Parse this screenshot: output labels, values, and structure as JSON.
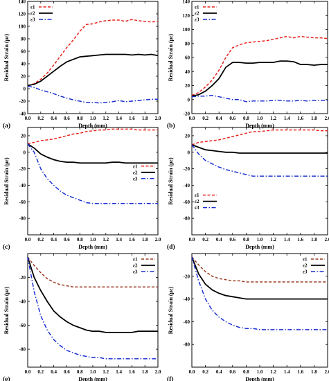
{
  "chart_data": [
    {
      "type": "line",
      "panel_label": "(a)",
      "xlabel": "Depth (mm)",
      "ylabel": "Residual Strain (με)",
      "xlim": [
        0,
        2
      ],
      "ylim": [
        -40,
        140
      ],
      "xticks": [
        "0.0",
        "0.2",
        "0.4",
        "0.6",
        "0.8",
        "1.0",
        "1.2",
        "1.4",
        "1.6",
        "1.8",
        "2.0"
      ],
      "yticks": [
        "-40",
        "-20",
        "0",
        "20",
        "40",
        "60",
        "80",
        "100",
        "120",
        "140"
      ],
      "legend_position": "top-left",
      "series": [
        {
          "name": "ε1",
          "color": "#e8231d",
          "dash": "dashed",
          "x": [
            0,
            0.1,
            0.2,
            0.3,
            0.4,
            0.5,
            0.6,
            0.7,
            0.8,
            0.9,
            1.0,
            1.1,
            1.2,
            1.3,
            1.4,
            1.5,
            1.6,
            1.7,
            1.8,
            1.9,
            2.0
          ],
          "y": [
            5,
            8,
            15,
            25,
            38,
            52,
            66,
            78,
            92,
            103,
            104,
            107,
            109,
            110,
            110,
            108,
            111,
            109,
            108,
            107,
            108
          ]
        },
        {
          "name": "ε2",
          "color": "#000000",
          "dash": "solid",
          "x": [
            0,
            0.1,
            0.2,
            0.3,
            0.4,
            0.5,
            0.6,
            0.7,
            0.8,
            0.9,
            1.0,
            1.1,
            1.2,
            1.3,
            1.4,
            1.5,
            1.6,
            1.7,
            1.8,
            1.9,
            2.0
          ],
          "y": [
            5,
            7,
            12,
            20,
            28,
            36,
            43,
            47,
            51,
            52,
            53,
            54,
            55,
            55,
            55,
            55,
            54,
            55,
            54,
            55,
            53
          ]
        },
        {
          "name": "ε3",
          "color": "#1a2fd4",
          "dash": "dashdot",
          "x": [
            0,
            0.1,
            0.2,
            0.3,
            0.4,
            0.5,
            0.6,
            0.7,
            0.8,
            0.9,
            1.0,
            1.1,
            1.2,
            1.3,
            1.4,
            1.5,
            1.6,
            1.7,
            1.8,
            1.9,
            2.0
          ],
          "y": [
            4,
            2,
            -2,
            -5,
            -8,
            -12,
            -15,
            -18,
            -20,
            -22,
            -22,
            -23,
            -22,
            -21,
            -19,
            -21,
            -20,
            -19,
            -18,
            -17,
            -17
          ]
        }
      ]
    },
    {
      "type": "line",
      "panel_label": "(b)",
      "xlabel": "Depth (mm)",
      "ylabel": "Residual Strain (με)",
      "xlim": [
        0,
        2
      ],
      "ylim": [
        -20,
        140
      ],
      "xticks": [
        "0.0",
        "0.2",
        "0.4",
        "0.6",
        "0.8",
        "1.0",
        "1.2",
        "1.4",
        "1.6",
        "1.8",
        "2.0"
      ],
      "yticks": [
        "-20",
        "0",
        "20",
        "40",
        "60",
        "80",
        "100",
        "120",
        "140"
      ],
      "legend_position": "top-left",
      "series": [
        {
          "name": "ε1",
          "color": "#e8231d",
          "dash": "dashed",
          "x": [
            0,
            0.1,
            0.2,
            0.3,
            0.4,
            0.5,
            0.6,
            0.7,
            0.8,
            0.9,
            1.0,
            1.1,
            1.2,
            1.3,
            1.4,
            1.5,
            1.6,
            1.7,
            1.8,
            1.9,
            2.0
          ],
          "y": [
            6,
            10,
            18,
            28,
            42,
            60,
            74,
            78,
            81,
            82,
            83,
            84,
            86,
            88,
            90,
            88,
            90,
            89,
            88,
            88,
            87
          ]
        },
        {
          "name": "ε2",
          "color": "#000000",
          "dash": "solid",
          "x": [
            0,
            0.1,
            0.2,
            0.3,
            0.4,
            0.5,
            0.6,
            0.7,
            0.8,
            0.9,
            1.0,
            1.1,
            1.2,
            1.3,
            1.4,
            1.5,
            1.6,
            1.7,
            1.8,
            1.9,
            2.0
          ],
          "y": [
            5,
            7,
            12,
            20,
            30,
            46,
            53,
            53,
            52,
            52,
            53,
            53,
            53,
            55,
            55,
            54,
            50,
            50,
            49,
            50,
            50
          ]
        },
        {
          "name": "ε3",
          "color": "#1a2fd4",
          "dash": "dashdot",
          "x": [
            0,
            0.1,
            0.2,
            0.3,
            0.4,
            0.5,
            0.6,
            0.7,
            0.8,
            0.9,
            1.0,
            1.1,
            1.2,
            1.3,
            1.4,
            1.5,
            1.6,
            1.7,
            1.8,
            1.9,
            2.0
          ],
          "y": [
            4,
            5,
            5,
            6,
            4,
            2,
            0,
            0,
            -3,
            -2,
            -2,
            -2,
            -1,
            -1,
            -2,
            -2,
            -1,
            -2,
            -1,
            -1,
            -1
          ]
        }
      ]
    },
    {
      "type": "line",
      "panel_label": "(c)",
      "xlabel": "Depth (mm)",
      "ylabel": "Residual Strain (με)",
      "xlim": [
        0,
        2
      ],
      "ylim": [
        -100,
        30
      ],
      "xticks": [
        "0.0",
        "0.2",
        "0.4",
        "0.6",
        "0.8",
        "1.0",
        "1.2",
        "1.4",
        "1.6",
        "1.8",
        "2.0"
      ],
      "yticks": [
        "-80",
        "-60",
        "-40",
        "-20",
        "0",
        "20"
      ],
      "legend_position": "center-right",
      "series": [
        {
          "name": "ε1",
          "color": "#e8231d",
          "dash": "dashed",
          "x": [
            0,
            0.1,
            0.2,
            0.3,
            0.4,
            0.5,
            0.6,
            0.7,
            0.8,
            0.9,
            1.0,
            1.1,
            1.2,
            1.3,
            1.4,
            1.5,
            1.6,
            1.7,
            1.8,
            1.9,
            2.0
          ],
          "y": [
            10,
            12,
            14,
            15,
            16,
            18,
            20,
            22,
            23,
            25,
            26,
            27,
            27,
            28,
            28,
            28,
            28,
            27,
            27,
            27,
            27
          ]
        },
        {
          "name": "ε2",
          "color": "#000000",
          "dash": "solid",
          "x": [
            0,
            0.1,
            0.2,
            0.3,
            0.4,
            0.5,
            0.6,
            0.7,
            0.8,
            0.9,
            1.0,
            1.1,
            1.2,
            1.3,
            1.4,
            1.5,
            1.6,
            1.7,
            1.8,
            1.9,
            2.0
          ],
          "y": [
            10,
            5,
            -2,
            -6,
            -9,
            -11,
            -12,
            -12,
            -13,
            -13,
            -13,
            -13,
            -13,
            -12,
            -12,
            -13,
            -13,
            -13,
            -13,
            -13,
            -13
          ]
        },
        {
          "name": "ε3",
          "color": "#1a2fd4",
          "dash": "dashdot",
          "x": [
            0,
            0.1,
            0.2,
            0.3,
            0.4,
            0.5,
            0.6,
            0.7,
            0.8,
            0.9,
            1.0,
            1.1,
            1.2,
            1.3,
            1.4,
            1.5,
            1.6,
            1.7,
            1.8,
            1.9,
            2.0
          ],
          "y": [
            10,
            0,
            -20,
            -32,
            -40,
            -47,
            -52,
            -55,
            -58,
            -61,
            -62,
            -62,
            -62,
            -62,
            -62,
            -62,
            -62,
            -62,
            -62,
            -62,
            -62
          ]
        }
      ]
    },
    {
      "type": "line",
      "panel_label": "(d)",
      "xlabel": "Depth (mm)",
      "ylabel": "Residual Strain (με)",
      "xlim": [
        0,
        2
      ],
      "ylim": [
        -100,
        30
      ],
      "xticks": [
        "0.0",
        "0.2",
        "0.4",
        "0.6",
        "0.8",
        "1.0",
        "1.2",
        "1.4",
        "1.6",
        "1.8",
        "2.0"
      ],
      "yticks": [
        "-80",
        "-60",
        "-40",
        "-20",
        "0",
        "20"
      ],
      "legend_position": "center-left",
      "series": [
        {
          "name": "ε1",
          "color": "#e8231d",
          "dash": "dashed",
          "x": [
            0,
            0.1,
            0.2,
            0.3,
            0.4,
            0.5,
            0.6,
            0.7,
            0.8,
            0.9,
            1.0,
            1.1,
            1.2,
            1.3,
            1.4,
            1.5,
            1.6,
            1.7,
            1.8,
            1.9,
            2.0
          ],
          "y": [
            9,
            12,
            13,
            14,
            15,
            17,
            19,
            21,
            23,
            25,
            25,
            26,
            27,
            27,
            27,
            27,
            27,
            27,
            27,
            26,
            26
          ]
        },
        {
          "name": "ε2",
          "color": "#000000",
          "dash": "solid",
          "x": [
            0,
            0.1,
            0.2,
            0.3,
            0.4,
            0.5,
            0.6,
            0.7,
            0.8,
            0.9,
            1.0,
            1.1,
            1.2,
            1.3,
            1.4,
            1.5,
            1.6,
            1.7,
            1.8,
            1.9,
            2.0
          ],
          "y": [
            9,
            6,
            3,
            2,
            1,
            0,
            0,
            -1,
            -1,
            -1,
            -1,
            -1,
            -1,
            -1,
            -1,
            -1,
            -1,
            -1,
            -1,
            -1,
            -1
          ]
        },
        {
          "name": "ε3",
          "color": "#1a2fd4",
          "dash": "dashdot",
          "x": [
            0,
            0.1,
            0.2,
            0.3,
            0.4,
            0.5,
            0.6,
            0.7,
            0.8,
            0.9,
            1.0,
            1.1,
            1.2,
            1.3,
            1.4,
            1.5,
            1.6,
            1.7,
            1.8,
            1.9,
            2.0
          ],
          "y": [
            9,
            -2,
            -10,
            -14,
            -18,
            -21,
            -23,
            -25,
            -27,
            -29,
            -29,
            -29,
            -29,
            -29,
            -29,
            -29,
            -29,
            -29,
            -29,
            -29,
            -29
          ]
        }
      ]
    },
    {
      "type": "line",
      "panel_label": "(e)",
      "xlabel": "Depth (mm)",
      "ylabel": "Residual Strain (με)",
      "xlim": [
        0,
        2
      ],
      "ylim": [
        -95,
        0
      ],
      "xticks": [
        "0.0",
        "0.2",
        "0.4",
        "0.6",
        "0.8",
        "1.0",
        "1.2",
        "1.4",
        "1.6",
        "1.8",
        "2.0"
      ],
      "yticks": [
        "-80",
        "-60",
        "-40",
        "-20"
      ],
      "legend_position": "top-right",
      "series": [
        {
          "name": "ε1",
          "color": "#9c3a24",
          "dash": "dashed",
          "x": [
            0,
            0.1,
            0.2,
            0.3,
            0.4,
            0.5,
            0.6,
            0.7,
            0.8,
            0.9,
            1.0,
            1.1,
            1.2,
            1.3,
            1.4,
            1.5,
            1.6,
            1.7,
            1.8,
            1.9,
            2.0
          ],
          "y": [
            -3,
            -10,
            -16,
            -21,
            -24,
            -26,
            -27,
            -28,
            -28,
            -28,
            -28,
            -28,
            -28,
            -28,
            -28,
            -28,
            -28,
            -28,
            -28,
            -28,
            -28
          ]
        },
        {
          "name": "ε2",
          "color": "#000000",
          "dash": "solid",
          "x": [
            0,
            0.1,
            0.2,
            0.3,
            0.4,
            0.5,
            0.6,
            0.7,
            0.8,
            0.9,
            1.0,
            1.1,
            1.2,
            1.3,
            1.4,
            1.5,
            1.6,
            1.7,
            1.8,
            1.9,
            2.0
          ],
          "y": [
            -3,
            -20,
            -31,
            -40,
            -48,
            -53,
            -57,
            -60,
            -62,
            -64,
            -65,
            -65,
            -66,
            -66,
            -66,
            -66,
            -66,
            -65,
            -65,
            -65,
            -65
          ]
        },
        {
          "name": "ε3",
          "color": "#1a2fd4",
          "dash": "dashdot",
          "x": [
            0,
            0.1,
            0.2,
            0.3,
            0.4,
            0.5,
            0.6,
            0.7,
            0.8,
            0.9,
            1.0,
            1.1,
            1.2,
            1.3,
            1.4,
            1.5,
            1.6,
            1.7,
            1.8,
            1.9,
            2.0
          ],
          "y": [
            -3,
            -32,
            -52,
            -64,
            -72,
            -77,
            -81,
            -83,
            -85,
            -86,
            -87,
            -87,
            -88,
            -88,
            -88,
            -88,
            -88,
            -88,
            -88,
            -88,
            -88
          ]
        }
      ]
    },
    {
      "type": "line",
      "panel_label": "(f)",
      "xlabel": "Depth (mm)",
      "ylabel": "Residual Strain (με)",
      "xlim": [
        0,
        2
      ],
      "ylim": [
        -100,
        0
      ],
      "xticks": [
        "0.0",
        "0.2",
        "0.4",
        "0.6",
        "0.8",
        "1.0",
        "1.2",
        "1.4",
        "1.6",
        "1.8",
        "2.0"
      ],
      "yticks": [
        "-80",
        "-60",
        "-40",
        "-20"
      ],
      "legend_position": "top-right",
      "series": [
        {
          "name": "ε1",
          "color": "#9c3a24",
          "dash": "dashed",
          "x": [
            0,
            0.1,
            0.2,
            0.3,
            0.4,
            0.5,
            0.6,
            0.7,
            0.8,
            0.9,
            1.0,
            1.1,
            1.2,
            1.3,
            1.4,
            1.5,
            1.6,
            1.7,
            1.8,
            1.9,
            2.0
          ],
          "y": [
            -3,
            -10,
            -16,
            -20,
            -22,
            -23,
            -24,
            -24,
            -25,
            -25,
            -25,
            -25,
            -25,
            -25,
            -25,
            -25,
            -25,
            -25,
            -25,
            -25,
            -25
          ]
        },
        {
          "name": "ε2",
          "color": "#000000",
          "dash": "solid",
          "x": [
            0,
            0.1,
            0.2,
            0.3,
            0.4,
            0.5,
            0.6,
            0.7,
            0.8,
            0.9,
            1.0,
            1.1,
            1.2,
            1.3,
            1.4,
            1.5,
            1.6,
            1.7,
            1.8,
            1.9,
            2.0
          ],
          "y": [
            -3,
            -18,
            -27,
            -32,
            -35,
            -37,
            -38,
            -39,
            -40,
            -40,
            -40,
            -40,
            -40,
            -40,
            -40,
            -40,
            -40,
            -40,
            -40,
            -40,
            -40
          ]
        },
        {
          "name": "ε3",
          "color": "#1a2fd4",
          "dash": "dashdot",
          "x": [
            0,
            0.1,
            0.2,
            0.3,
            0.4,
            0.5,
            0.6,
            0.7,
            0.8,
            0.9,
            1.0,
            1.1,
            1.2,
            1.3,
            1.4,
            1.5,
            1.6,
            1.7,
            1.8,
            1.9,
            2.0
          ],
          "y": [
            -3,
            -24,
            -40,
            -50,
            -56,
            -60,
            -63,
            -65,
            -66,
            -66,
            -67,
            -67,
            -67,
            -67,
            -67,
            -67,
            -67,
            -67,
            -67,
            -67,
            -67
          ]
        }
      ]
    }
  ]
}
